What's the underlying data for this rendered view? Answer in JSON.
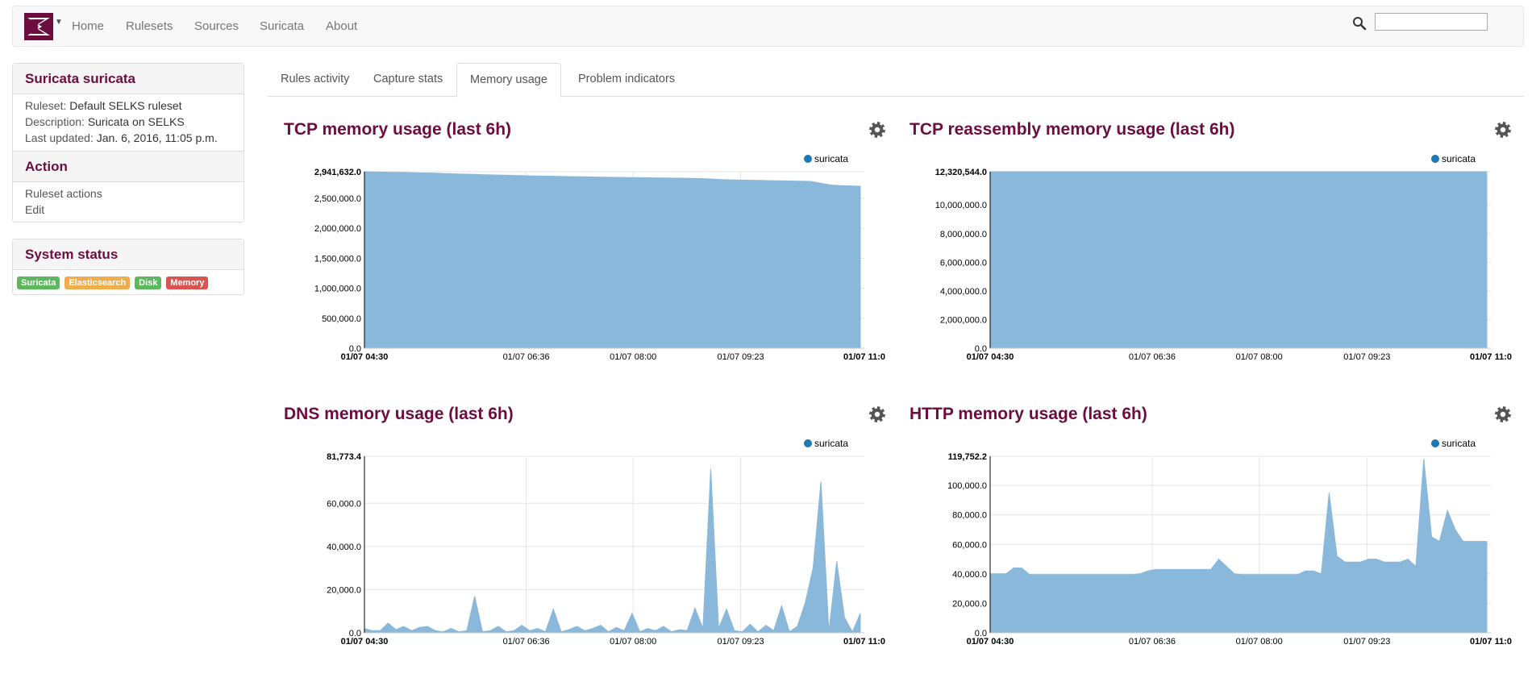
{
  "nav": {
    "items": [
      "Home",
      "Rulesets",
      "Sources",
      "Suricata",
      "About"
    ],
    "search_value": ""
  },
  "sidebar": {
    "info_title": "Suricata suricata",
    "ruleset_label": "Ruleset:",
    "ruleset_value": "Default SELKS ruleset",
    "description_label": "Description:",
    "description_value": "Suricata on SELKS",
    "updated_label": "Last updated:",
    "updated_value": "Jan. 6, 2016, 11:05 p.m.",
    "action_title": "Action",
    "actions": [
      "Ruleset actions",
      "Edit"
    ],
    "status_title": "System status",
    "badges": [
      {
        "label": "Suricata",
        "color": "#5cb85c"
      },
      {
        "label": "Elasticsearch",
        "color": "#f0ad4e"
      },
      {
        "label": "Disk",
        "color": "#5cb85c"
      },
      {
        "label": "Memory",
        "color": "#d9534f"
      }
    ]
  },
  "tabs": [
    "Rules activity",
    "Capture stats",
    "Memory usage",
    "Problem indicators"
  ],
  "active_tab": "Memory usage",
  "colors": {
    "brand": "#6d0d3f",
    "area": "#8ab8da",
    "legend_dot": "#1f77b4"
  },
  "chart_data": [
    {
      "type": "area",
      "title": "TCP memory usage (last 6h)",
      "legend": "suricata",
      "ymax_label": "2,941,632.0",
      "ylim": [
        0,
        2941632
      ],
      "yticks": [
        "0.0",
        "500,000.0",
        "1,000,000.0",
        "1,500,000.0",
        "2,000,000.0",
        "2,500,000.0"
      ],
      "ytick_values": [
        0,
        500000,
        1000000,
        1500000,
        2000000,
        2500000
      ],
      "xticks": [
        "01/07 04:30",
        "01/07 06:36",
        "01/07 08:00",
        "01/07 09:23",
        "01/07 11:0"
      ],
      "xtick_bold": [
        true,
        false,
        false,
        false,
        true
      ],
      "series": [
        {
          "name": "suricata",
          "values": [
            2941632,
            2938000,
            2935000,
            2932000,
            2929000,
            2925000,
            2921000,
            2917000,
            2912000,
            2907000,
            2902000,
            2897000,
            2892000,
            2888000,
            2884000,
            2880000,
            2876000,
            2872000,
            2869000,
            2866000,
            2863000,
            2860000,
            2857000,
            2854000,
            2851000,
            2848000,
            2846000,
            2844000,
            2842000,
            2840000,
            2838000,
            2836000,
            2834000,
            2831000,
            2828000,
            2820000,
            2812000,
            2806000,
            2802000,
            2799000,
            2796000,
            2793000,
            2790000,
            2787000,
            2784000,
            2780000,
            2750000,
            2720000,
            2710000,
            2705000,
            2700000
          ]
        }
      ]
    },
    {
      "type": "area",
      "title": "TCP reassembly memory usage (last 6h)",
      "legend": "suricata",
      "ymax_label": "12,320,544.0",
      "ylim": [
        0,
        12320544
      ],
      "yticks": [
        "0.0",
        "2,000,000.0",
        "4,000,000.0",
        "6,000,000.0",
        "8,000,000.0",
        "10,000,000.0"
      ],
      "ytick_values": [
        0,
        2000000,
        4000000,
        6000000,
        8000000,
        10000000
      ],
      "xticks": [
        "01/07 04:30",
        "01/07 06:36",
        "01/07 08:00",
        "01/07 09:23",
        "01/07 11:0"
      ],
      "xtick_bold": [
        true,
        false,
        false,
        false,
        true
      ],
      "series": [
        {
          "name": "suricata",
          "values": [
            12320544,
            12320544,
            12320544,
            12320544,
            12320544,
            12320544,
            12320544,
            12320544,
            12320544,
            12320544,
            12320544
          ]
        }
      ]
    },
    {
      "type": "area",
      "title": "DNS memory usage (last 6h)",
      "legend": "suricata",
      "ymax_label": "81,773.4",
      "ylim": [
        0,
        81773.4
      ],
      "yticks": [
        "0.0",
        "20,000.0",
        "40,000.0",
        "60,000.0"
      ],
      "ytick_values": [
        0,
        20000,
        40000,
        60000
      ],
      "xticks": [
        "01/07 04:30",
        "01/07 06:36",
        "01/07 08:00",
        "01/07 09:23",
        "01/07 11:0"
      ],
      "xtick_bold": [
        true,
        false,
        false,
        false,
        true
      ],
      "series": [
        {
          "name": "suricata",
          "values": [
            2000,
            1000,
            1000,
            4500,
            1500,
            3000,
            1000,
            2500,
            3000,
            1000,
            500,
            2000,
            500,
            1000,
            17000,
            500,
            1000,
            3000,
            500,
            1000,
            3500,
            1000,
            2000,
            500,
            11000,
            500,
            1500,
            3000,
            1000,
            2000,
            3500,
            500,
            2500,
            1000,
            9000,
            500,
            2000,
            1000,
            3000,
            500,
            1500,
            1000,
            11500,
            2000,
            76000,
            2000,
            11000,
            1000,
            500,
            4000,
            500,
            3500,
            1000,
            12500,
            500,
            3000,
            14000,
            30000,
            70000,
            500,
            33000,
            7000,
            500,
            9000
          ]
        }
      ]
    },
    {
      "type": "area",
      "title": "HTTP memory usage (last 6h)",
      "legend": "suricata",
      "ymax_label": "119,752.2",
      "ylim": [
        0,
        119752.2
      ],
      "yticks": [
        "0.0",
        "20,000.0",
        "40,000.0",
        "60,000.0",
        "80,000.0",
        "100,000.0"
      ],
      "ytick_values": [
        0,
        20000,
        40000,
        60000,
        80000,
        100000
      ],
      "xticks": [
        "01/07 04:30",
        "01/07 06:36",
        "01/07 08:00",
        "01/07 09:23",
        "01/07 11:0"
      ],
      "xtick_bold": [
        true,
        false,
        false,
        false,
        true
      ],
      "series": [
        {
          "name": "suricata",
          "values": [
            40000,
            40000,
            40000,
            44000,
            44000,
            39500,
            39500,
            39500,
            39500,
            39500,
            39500,
            39500,
            39500,
            39500,
            39500,
            39500,
            39500,
            39500,
            39500,
            40000,
            42000,
            43000,
            43000,
            43000,
            43000,
            43000,
            43000,
            43000,
            43000,
            50000,
            45000,
            40000,
            39500,
            39500,
            39500,
            39500,
            39500,
            39500,
            39500,
            39500,
            42000,
            42000,
            40000,
            95000,
            52000,
            48000,
            48000,
            48000,
            50000,
            50000,
            48000,
            48000,
            48000,
            50000,
            45000,
            118000,
            65000,
            62000,
            83000,
            70000,
            62000,
            62000,
            62000,
            62000
          ]
        }
      ]
    }
  ]
}
